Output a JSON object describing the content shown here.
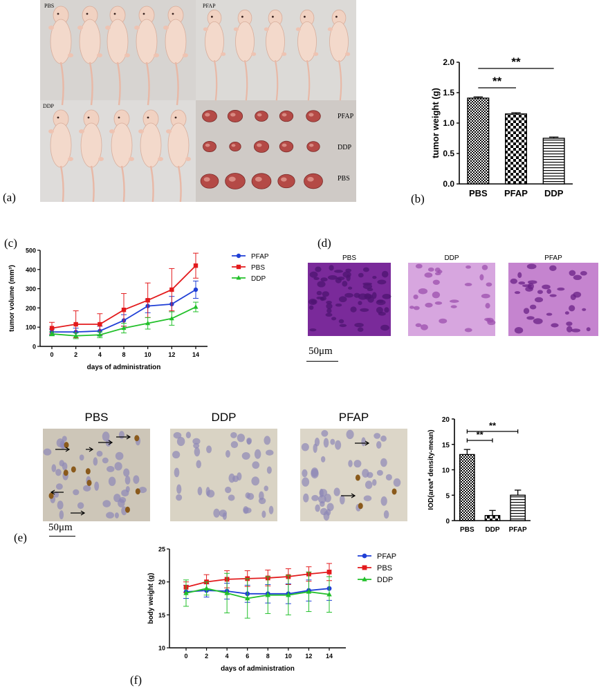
{
  "figure": {
    "panel_letters": [
      "(a)",
      "(b)",
      "(c)",
      "(d)",
      "(e)",
      "(f)"
    ],
    "photo_labels": {
      "top_left": "PBS",
      "top_right": "PFAP",
      "bottom_left": "DDP",
      "tumor_rows": [
        "PFAP",
        "DDP",
        "PBS"
      ]
    },
    "scalebar_d": "50μm",
    "scalebar_e": "50μm",
    "micro_d_titles": [
      "PBS",
      "DDP",
      "PFAP"
    ],
    "micro_e_titles": [
      "PBS",
      "DDP",
      "PFAP"
    ],
    "colors": {
      "PFAP": "#1f3fd6",
      "PBS": "#e31a1c",
      "DDP": "#22c02a"
    }
  },
  "chart_data": [
    {
      "id": "b",
      "type": "bar",
      "categories": [
        "PBS",
        "PFAP",
        "DDP"
      ],
      "values": [
        1.41,
        1.15,
        0.75
      ],
      "errors": [
        0.02,
        0.02,
        0.02
      ],
      "patterns": [
        "checker-fine",
        "checker-coarse",
        "horizontal-lines"
      ],
      "ylabel": "tumor weight (g)",
      "ylim": [
        0,
        2.0
      ],
      "yticks": [
        "0.0",
        "0.5",
        "1.0",
        "1.5",
        "2.0"
      ],
      "significance": [
        {
          "from": "PBS",
          "to": "PFAP",
          "label": "**"
        },
        {
          "from": "PBS",
          "to": "DDP",
          "label": "**"
        }
      ]
    },
    {
      "id": "c",
      "type": "line",
      "x": [
        0,
        2,
        4,
        8,
        10,
        12,
        14
      ],
      "xticks": [
        "0",
        "2",
        "4",
        "8",
        "10",
        "12",
        "14"
      ],
      "xlabel": "days of administration",
      "ylabel": "tumor volume (mm³)",
      "ylim": [
        0,
        500
      ],
      "yticks": [
        "0",
        "100",
        "200",
        "300",
        "400",
        "500"
      ],
      "legend": "right",
      "series": [
        {
          "name": "PFAP",
          "values": [
            75,
            75,
            80,
            135,
            210,
            220,
            295
          ],
          "errors": [
            15,
            20,
            25,
            30,
            35,
            40,
            45
          ],
          "marker": "circle"
        },
        {
          "name": "PBS",
          "values": [
            95,
            115,
            115,
            190,
            240,
            295,
            420
          ],
          "errors": [
            30,
            70,
            55,
            85,
            90,
            110,
            65
          ],
          "marker": "square"
        },
        {
          "name": "DDP",
          "values": [
            65,
            55,
            60,
            95,
            120,
            145,
            205
          ],
          "errors": [
            10,
            15,
            15,
            25,
            30,
            35,
            25
          ],
          "marker": "triangle"
        }
      ]
    },
    {
      "id": "e",
      "type": "bar",
      "categories": [
        "PBS",
        "DDP",
        "PFAP"
      ],
      "values": [
        13,
        1,
        5
      ],
      "errors": [
        1,
        1,
        1
      ],
      "patterns": [
        "checker-fine",
        "checker-coarse",
        "horizontal-lines"
      ],
      "ylabel": "IOD(area* density-mean)",
      "ylim": [
        0,
        20
      ],
      "yticks": [
        "0",
        "5",
        "10",
        "15",
        "20"
      ],
      "significance": [
        {
          "from": "PBS",
          "to": "DDP",
          "label": "**"
        },
        {
          "from": "PBS",
          "to": "PFAP",
          "label": "**"
        }
      ]
    },
    {
      "id": "f",
      "type": "line",
      "x": [
        0,
        2,
        4,
        6,
        8,
        10,
        12,
        14
      ],
      "xticks": [
        "0",
        "2",
        "4",
        "6",
        "8",
        "10",
        "12",
        "14"
      ],
      "xlabel": "days of administration",
      "ylabel": "body weight (g)",
      "ylim": [
        10,
        25
      ],
      "yticks": [
        "10",
        "15",
        "20",
        "25"
      ],
      "legend": "right",
      "series": [
        {
          "name": "PFAP",
          "values": [
            18.5,
            18.7,
            18.6,
            18.2,
            18.2,
            18.2,
            18.7,
            19.0
          ],
          "errors": [
            1.0,
            1.0,
            1.2,
            1.3,
            1.4,
            1.5,
            1.6,
            1.8
          ],
          "marker": "circle"
        },
        {
          "name": "PBS",
          "values": [
            19.2,
            20.0,
            20.4,
            20.5,
            20.6,
            20.8,
            21.2,
            21.5
          ],
          "errors": [
            0.8,
            1.1,
            1.3,
            1.2,
            1.2,
            1.2,
            1.1,
            1.3
          ],
          "marker": "square"
        },
        {
          "name": "DDP",
          "values": [
            18.3,
            19.0,
            18.3,
            17.5,
            18.0,
            18.0,
            18.5,
            18.1
          ],
          "errors": [
            2.0,
            1.0,
            3.0,
            3.0,
            2.8,
            3.0,
            3.0,
            2.7
          ],
          "marker": "triangle"
        }
      ]
    }
  ]
}
